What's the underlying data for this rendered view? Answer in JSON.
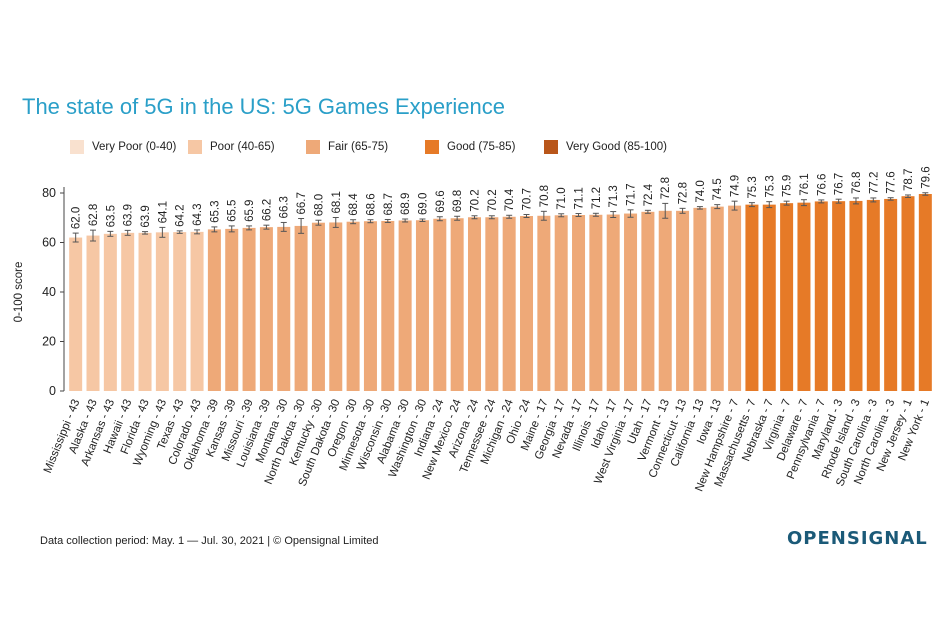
{
  "chart_data": {
    "type": "bar",
    "title": "The state of 5G in the US: 5G Games Experience",
    "ylabel": "0-100 score",
    "ylim": [
      0,
      80
    ],
    "yticks": [
      0,
      20,
      40,
      60,
      80
    ],
    "legend": [
      {
        "label": "Very Poor (0-40)",
        "color": "#f9e1cf"
      },
      {
        "label": "Poor (40-65)",
        "color": "#f6c7a4"
      },
      {
        "label": "Fair (65-75)",
        "color": "#eea978"
      },
      {
        "label": "Good (75-85)",
        "color": "#e67a27"
      },
      {
        "label": "Very Good (85-100)",
        "color": "#b9561a"
      }
    ],
    "categories": [
      "Mississippi - 43",
      "Alaska - 43",
      "Arkansas - 43",
      "Hawaii - 43",
      "Florida - 43",
      "Wyoming - 43",
      "Texas - 43",
      "Colorado - 43",
      "Oklahoma - 39",
      "Kansas - 39",
      "Missouri - 39",
      "Louisiana - 39",
      "Montana - 30",
      "North Dakota - 30",
      "Kentucky - 30",
      "South Dakota - 30",
      "Oregon - 30",
      "Minnesota - 30",
      "Wisconsin - 30",
      "Alabama - 30",
      "Washington - 30",
      "Indiana - 24",
      "New Mexico - 24",
      "Arizona - 24",
      "Tennessee - 24",
      "Michigan - 24",
      "Ohio - 24",
      "Maine - 17",
      "Georgia - 17",
      "Nevada - 17",
      "Illinois - 17",
      "Idaho - 17",
      "West Virginia - 17",
      "Utah - 17",
      "Vermont - 13",
      "Connecticut - 13",
      "California - 13",
      "Iowa - 13",
      "New Hampshire - 7",
      "Massachusetts - 7",
      "Nebraska - 7",
      "Virginia - 7",
      "Delaware - 7",
      "Pennsylvania - 7",
      "Maryland - 3",
      "Rhode Island - 3",
      "South Carolina - 3",
      "North Carolina - 3",
      "New Jersey - 1",
      "New York - 1"
    ],
    "values": [
      62.0,
      62.8,
      63.5,
      63.9,
      63.9,
      64.1,
      64.2,
      64.3,
      65.3,
      65.5,
      65.9,
      66.2,
      66.3,
      66.7,
      68.0,
      68.1,
      68.4,
      68.6,
      68.7,
      68.9,
      69.0,
      69.6,
      69.8,
      70.2,
      70.2,
      70.4,
      70.7,
      70.8,
      71.0,
      71.1,
      71.2,
      71.3,
      71.7,
      72.4,
      72.8,
      72.8,
      74.0,
      74.5,
      74.9,
      75.3,
      75.3,
      75.9,
      76.1,
      76.6,
      76.7,
      76.8,
      77.2,
      77.6,
      78.7,
      79.6
    ],
    "value_labels": [
      "62.0",
      "62.8",
      "63.5",
      "63.9",
      "63.9",
      "64.1",
      "64.2",
      "64.3",
      "65.3",
      "65.5",
      "65.9",
      "66.2",
      "66.3",
      "66.7",
      "68.0",
      "68.1",
      "68.4",
      "68.6",
      "68.7",
      "68.9",
      "69.0",
      "69.6",
      "69.8",
      "70.2",
      "70.2",
      "70.4",
      "70.7",
      "70.8",
      "71.0",
      "71.1",
      "71.2",
      "71.3",
      "71.7",
      "72.4",
      "72.8",
      "72.8",
      "74.0",
      "74.5",
      "74.9",
      "75.3",
      "75.3",
      "75.9",
      "76.1",
      "76.6",
      "76.7",
      "76.8",
      "77.2",
      "77.6",
      "78.7",
      "79.6"
    ],
    "errors": [
      1.8,
      2.2,
      1.0,
      1.0,
      0.5,
      2.0,
      0.5,
      0.8,
      1.0,
      1.2,
      0.8,
      0.8,
      1.8,
      3.0,
      1.0,
      2.0,
      0.8,
      0.6,
      0.6,
      0.6,
      0.5,
      0.8,
      0.8,
      0.6,
      0.6,
      0.6,
      0.6,
      1.8,
      0.6,
      0.6,
      0.6,
      1.2,
      1.5,
      0.6,
      3.0,
      1.0,
      0.5,
      0.8,
      1.8,
      0.8,
      1.2,
      0.8,
      1.2,
      0.6,
      0.8,
      1.2,
      0.8,
      0.5,
      0.5,
      0.5
    ],
    "bar_colors": [
      "#f6c7a4",
      "#f6c7a4",
      "#f6c7a4",
      "#f6c7a4",
      "#f6c7a4",
      "#f6c7a4",
      "#f6c7a4",
      "#f6c7a4",
      "#eea978",
      "#eea978",
      "#eea978",
      "#eea978",
      "#eea978",
      "#eea978",
      "#eea978",
      "#eea978",
      "#eea978",
      "#eea978",
      "#eea978",
      "#eea978",
      "#eea978",
      "#eea978",
      "#eea978",
      "#eea978",
      "#eea978",
      "#eea978",
      "#eea978",
      "#eea978",
      "#eea978",
      "#eea978",
      "#eea978",
      "#eea978",
      "#eea978",
      "#eea978",
      "#eea978",
      "#eea978",
      "#eea978",
      "#eea978",
      "#eea978",
      "#e67a27",
      "#e67a27",
      "#e67a27",
      "#e67a27",
      "#e67a27",
      "#e67a27",
      "#e67a27",
      "#e67a27",
      "#e67a27",
      "#e67a27",
      "#e67a27"
    ],
    "grid": false,
    "legend_position": "top-left"
  },
  "footer": "Data collection period: May. 1 — Jul. 30, 2021 | © Opensignal Limited",
  "logo": "OPENSIGNAL"
}
